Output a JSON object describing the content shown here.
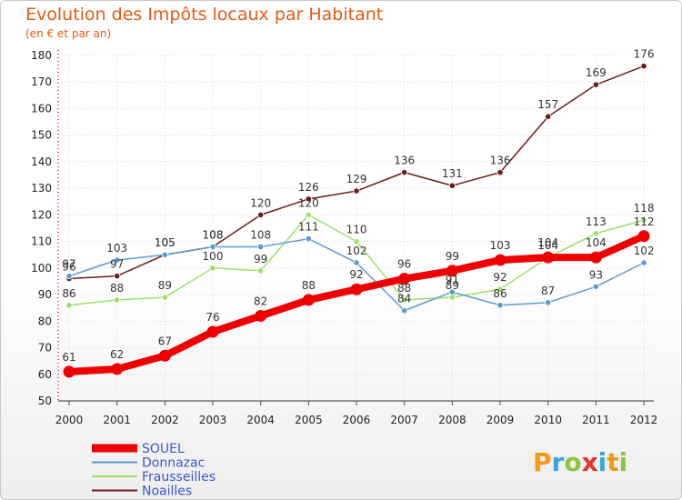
{
  "header": {
    "title": "Evolution des Impôts locaux par Habitant",
    "subtitle": "(en € et par an)"
  },
  "brand": {
    "letters": [
      "P",
      "r",
      "o",
      "x",
      "i",
      "t",
      "i"
    ],
    "colors": [
      "#f59a13",
      "#3aa7dd",
      "#8fc43b",
      "#e8322d",
      "#3aa7dd",
      "#f59a13",
      "#8fc43b"
    ]
  },
  "chart_data": {
    "type": "line",
    "title": "Evolution des Impôts locaux par Habitant",
    "subtitle": "(en € et par an)",
    "xlabel": "",
    "ylabel": "",
    "x": [
      "2000",
      "2001",
      "2002",
      "2003",
      "2004",
      "2005",
      "2006",
      "2007",
      "2008",
      "2009",
      "2010",
      "2011",
      "2012"
    ],
    "ylim": [
      50,
      180
    ],
    "yticks": [
      50,
      60,
      70,
      80,
      90,
      100,
      110,
      120,
      130,
      140,
      150,
      160,
      170,
      180
    ],
    "grid": true,
    "legend_position": "bottom-left",
    "series": [
      {
        "name": "Noailles",
        "color": "#6e1a1a",
        "values": [
          96,
          97,
          105,
          108,
          120,
          126,
          129,
          136,
          131,
          136,
          157,
          169,
          176
        ]
      },
      {
        "name": "Frausseilles",
        "color": "#9ee06a",
        "values": [
          86,
          88,
          89,
          100,
          99,
          120,
          110,
          88,
          89,
          92,
          104,
          113,
          118
        ]
      },
      {
        "name": "Donnazac",
        "color": "#5b9bd1",
        "values": [
          97,
          103,
          105,
          108,
          108,
          111,
          102,
          84,
          91,
          86,
          87,
          93,
          102
        ]
      },
      {
        "name": "SOUEL",
        "color": "#ee0000",
        "values": [
          61,
          62,
          67,
          76,
          82,
          88,
          92,
          96,
          99,
          103,
          104,
          104,
          112
        ]
      }
    ],
    "legend": [
      "SOUEL",
      "Donnazac",
      "Frausseilles",
      "Noailles"
    ]
  }
}
